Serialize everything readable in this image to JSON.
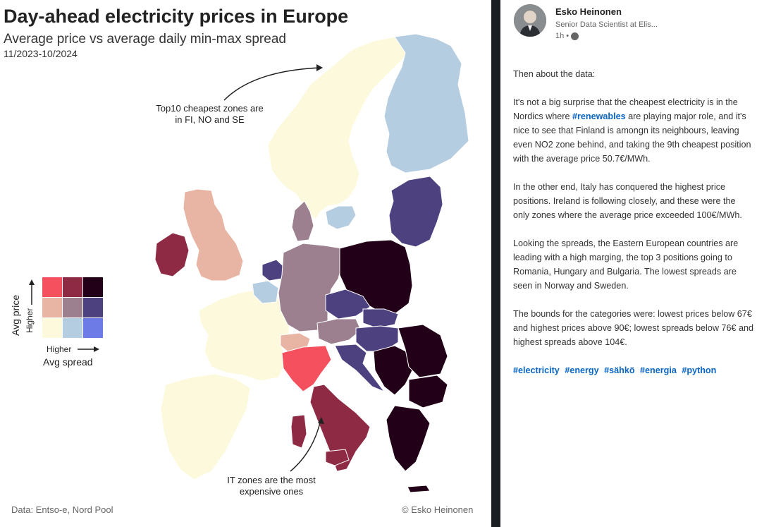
{
  "figure": {
    "title": "Day-ahead electricity prices in Europe",
    "subtitle": "Average price vs average daily min-max spread",
    "period": "11/2023-10/2024",
    "source": "Data: Entso-e, Nord Pool",
    "copyright": "© Esko Heinonen",
    "annotation_top": "Top10 cheapest zones are in FI, NO and SE",
    "annotation_bottom": "IT zones are the most expensive ones",
    "legend": {
      "y_label": "Avg price",
      "y_higher": "Higher",
      "x_label": "Avg spread",
      "x_higher": "Higher",
      "grid_colors": [
        [
          "#f4505e",
          "#8e2a44",
          "#220018"
        ],
        [
          "#e8b4a4",
          "#9c8090",
          "#4e4180"
        ],
        [
          "#fdf9dc",
          "#b5cde0",
          "#6c7be6"
        ]
      ]
    },
    "palette": {
      "low_price_low_spread": "#fdf9dc",
      "low_price_mid_spread": "#b5cde0",
      "low_price_high_spread": "#6c7be6",
      "mid_price_low_spread": "#e8b4a4",
      "mid_price_mid_spread": "#9c8090",
      "mid_price_high_spread": "#4e4180",
      "high_price_low_spread": "#f4505e",
      "high_price_mid_spread": "#8e2a44",
      "high_price_high_spread": "#220018"
    }
  },
  "post": {
    "author": "Esko Heinonen",
    "author_title": "Senior Data Scientist at Elis...",
    "time": "1h •",
    "paragraphs": [
      "Then about the data:",
      "It's not a big surprise that the cheapest electricity is in the Nordics where #renewables are playing major role, and it's nice to see that Finland is amongn its neighbours, leaving even NO2 zone behind, and taking the 9th cheapest position with the average price 50.7€/MWh.",
      "In the other end, Italy has conquered the highest price positions. Ireland is following closely, and these were the only zones where the average price exceeded 100€/MWh.",
      "Looking the spreads, the Eastern European countries are leading with a high marging, the top 3 positions going to Romania, Hungary and Bulgaria. The lowest spreads are seen in Norway and Sweden.",
      "The bounds for the categories were: lowest prices below 67€ and highest prices above 90€; lowest spreads below 76€ and highest spreads above 104€."
    ],
    "p2_before": "It's not a big surprise that the cheapest electricity is in the Nordics where ",
    "p2_tag": "#renewables",
    "p2_after": " are playing major role, and it's nice to see that Finland is amongn its neighbours, leaving even NO2 zone behind, and taking the 9th cheapest position with the average price 50.7€/MWh.",
    "hashtags": [
      "#electricity",
      "#energy",
      "#sähkö",
      "#energia",
      "#python"
    ]
  }
}
